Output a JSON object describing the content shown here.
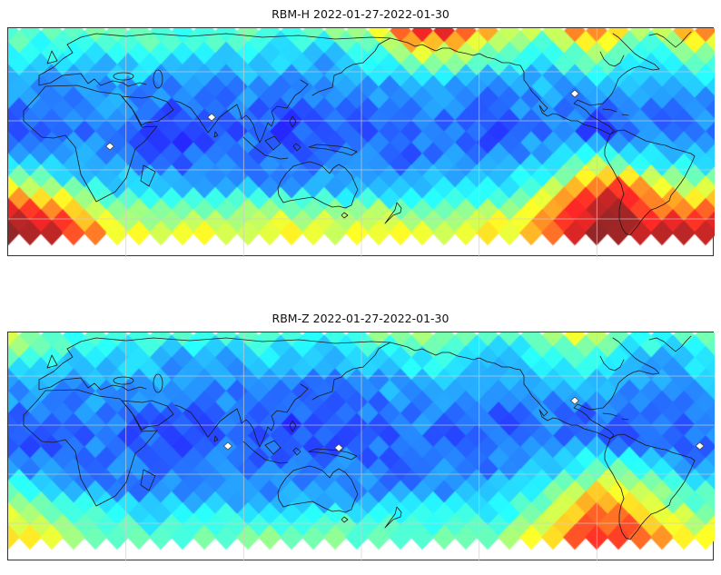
{
  "page": {
    "background": "#ffffff"
  },
  "style": {
    "coastline_color": "#1a1a1a",
    "grid_color": "#cfcfcf",
    "frame_color": "#333333",
    "marker_fill": "#ffffff",
    "marker_stroke": "#444444",
    "cell_alpha": 0.85
  },
  "chart_data": [
    {
      "type": "heatmap",
      "title": "RBM-H 2022-01-27-2022-01-30",
      "colormap": "jet",
      "legend": "world map heatmap of diamond-shaped cells; blue = low counts, red = high counts; high values over South Atlantic Anomaly (southern South America / South Atlantic, wrapping map edge) and northern high-latitude band",
      "grid_size": {
        "cols": 26,
        "rows": 9
      },
      "grid": [
        [
          0.48,
          0.45,
          0.42,
          0.45,
          0.48,
          0.45,
          0.42,
          0.45,
          0.48,
          0.45,
          0.42,
          0.45,
          0.5,
          0.62,
          0.85,
          0.95,
          0.9,
          0.78,
          0.58,
          0.52,
          0.8,
          0.85,
          0.6,
          0.52,
          0.8,
          0.85
        ],
        [
          0.4,
          0.38,
          0.35,
          0.33,
          0.35,
          0.38,
          0.35,
          0.33,
          0.35,
          0.33,
          0.3,
          0.33,
          0.35,
          0.42,
          0.52,
          0.56,
          0.52,
          0.46,
          0.4,
          0.38,
          0.46,
          0.5,
          0.42,
          0.38,
          0.45,
          0.48
        ],
        [
          0.3,
          0.28,
          0.25,
          0.28,
          0.3,
          0.28,
          0.25,
          0.22,
          0.25,
          0.28,
          0.25,
          0.22,
          0.25,
          0.28,
          0.3,
          0.33,
          0.3,
          0.28,
          0.3,
          0.28,
          0.3,
          0.33,
          0.3,
          0.28,
          0.3,
          0.32
        ],
        [
          0.22,
          0.2,
          0.22,
          0.25,
          0.22,
          0.2,
          0.18,
          0.2,
          0.22,
          0.2,
          0.18,
          0.2,
          0.22,
          0.2,
          0.22,
          0.25,
          0.22,
          0.2,
          0.22,
          0.25,
          0.22,
          0.2,
          0.22,
          0.25,
          0.22,
          0.25
        ],
        [
          0.2,
          0.18,
          0.2,
          0.22,
          0.2,
          0.18,
          0.16,
          0.18,
          0.2,
          0.18,
          0.16,
          0.18,
          0.2,
          0.18,
          0.2,
          0.22,
          0.2,
          0.18,
          0.2,
          0.22,
          0.2,
          0.18,
          0.2,
          0.22,
          0.2,
          0.22
        ],
        [
          0.35,
          0.3,
          0.28,
          0.25,
          0.25,
          0.22,
          0.2,
          0.22,
          0.25,
          0.22,
          0.2,
          0.22,
          0.25,
          0.22,
          0.2,
          0.22,
          0.25,
          0.25,
          0.28,
          0.32,
          0.42,
          0.48,
          0.4,
          0.32,
          0.3,
          0.32
        ],
        [
          0.62,
          0.55,
          0.45,
          0.38,
          0.32,
          0.3,
          0.3,
          0.28,
          0.3,
          0.28,
          0.3,
          0.28,
          0.3,
          0.28,
          0.3,
          0.33,
          0.32,
          0.35,
          0.38,
          0.48,
          0.7,
          0.85,
          0.8,
          0.6,
          0.55,
          0.58
        ],
        [
          0.95,
          0.9,
          0.8,
          0.65,
          0.55,
          0.5,
          0.52,
          0.55,
          0.52,
          0.55,
          0.52,
          0.55,
          0.52,
          0.56,
          0.52,
          0.5,
          0.52,
          0.55,
          0.58,
          0.72,
          0.88,
          0.97,
          0.96,
          0.88,
          0.82,
          0.88
        ],
        [
          1.0,
          0.98,
          0.92,
          0.8,
          0.68,
          0.65,
          0.66,
          0.68,
          0.65,
          0.66,
          0.68,
          0.65,
          0.66,
          0.7,
          0.65,
          0.6,
          0.62,
          0.65,
          0.7,
          0.82,
          0.96,
          1.0,
          1.0,
          0.98,
          0.95,
          1.0
        ]
      ],
      "markers": [
        {
          "x": 0.144,
          "y": 0.516
        },
        {
          "x": 0.288,
          "y": 0.389
        },
        {
          "x": 0.802,
          "y": 0.286
        }
      ]
    },
    {
      "type": "heatmap",
      "title": "RBM-Z 2022-01-27-2022-01-30",
      "colormap": "jet",
      "legend": "same map layout as RBM-H but overall lower intensities; moderate enhancement near southern South America and along top/bottom latitude bands",
      "grid_size": {
        "cols": 26,
        "rows": 9
      },
      "grid": [
        [
          0.62,
          0.5,
          0.45,
          0.42,
          0.45,
          0.42,
          0.4,
          0.42,
          0.45,
          0.42,
          0.4,
          0.42,
          0.45,
          0.48,
          0.52,
          0.55,
          0.5,
          0.46,
          0.42,
          0.55,
          0.62,
          0.58,
          0.46,
          0.42,
          0.45,
          0.48
        ],
        [
          0.42,
          0.38,
          0.35,
          0.32,
          0.3,
          0.32,
          0.3,
          0.28,
          0.3,
          0.32,
          0.3,
          0.28,
          0.3,
          0.32,
          0.36,
          0.38,
          0.35,
          0.32,
          0.3,
          0.36,
          0.42,
          0.38,
          0.32,
          0.3,
          0.32,
          0.35
        ],
        [
          0.28,
          0.26,
          0.24,
          0.26,
          0.28,
          0.26,
          0.24,
          0.22,
          0.24,
          0.26,
          0.24,
          0.22,
          0.24,
          0.26,
          0.28,
          0.3,
          0.28,
          0.26,
          0.28,
          0.26,
          0.28,
          0.3,
          0.28,
          0.26,
          0.28,
          0.3
        ],
        [
          0.22,
          0.2,
          0.22,
          0.24,
          0.22,
          0.2,
          0.18,
          0.2,
          0.22,
          0.2,
          0.18,
          0.2,
          0.22,
          0.2,
          0.22,
          0.24,
          0.22,
          0.2,
          0.22,
          0.24,
          0.22,
          0.2,
          0.22,
          0.24,
          0.22,
          0.24
        ],
        [
          0.2,
          0.18,
          0.2,
          0.22,
          0.2,
          0.18,
          0.16,
          0.18,
          0.2,
          0.18,
          0.16,
          0.18,
          0.2,
          0.18,
          0.2,
          0.22,
          0.2,
          0.18,
          0.2,
          0.22,
          0.2,
          0.18,
          0.2,
          0.22,
          0.2,
          0.22
        ],
        [
          0.26,
          0.24,
          0.22,
          0.22,
          0.24,
          0.22,
          0.2,
          0.22,
          0.24,
          0.22,
          0.2,
          0.22,
          0.24,
          0.22,
          0.2,
          0.22,
          0.24,
          0.22,
          0.24,
          0.28,
          0.35,
          0.45,
          0.38,
          0.3,
          0.26,
          0.24
        ],
        [
          0.45,
          0.38,
          0.32,
          0.28,
          0.26,
          0.24,
          0.26,
          0.24,
          0.26,
          0.24,
          0.26,
          0.24,
          0.26,
          0.24,
          0.26,
          0.28,
          0.26,
          0.28,
          0.32,
          0.42,
          0.58,
          0.68,
          0.62,
          0.48,
          0.42,
          0.4
        ],
        [
          0.62,
          0.56,
          0.5,
          0.42,
          0.38,
          0.36,
          0.38,
          0.4,
          0.38,
          0.4,
          0.38,
          0.4,
          0.38,
          0.4,
          0.38,
          0.4,
          0.38,
          0.42,
          0.46,
          0.56,
          0.72,
          0.82,
          0.78,
          0.66,
          0.56,
          0.52
        ],
        [
          0.72,
          0.68,
          0.62,
          0.55,
          0.5,
          0.48,
          0.5,
          0.52,
          0.5,
          0.52,
          0.5,
          0.48,
          0.5,
          0.52,
          0.5,
          0.46,
          0.5,
          0.52,
          0.56,
          0.66,
          0.8,
          0.86,
          0.84,
          0.76,
          0.7,
          0.72
        ]
      ],
      "markers": [
        {
          "x": 0.311,
          "y": 0.496
        },
        {
          "x": 0.468,
          "y": 0.504
        },
        {
          "x": 0.802,
          "y": 0.298
        },
        {
          "x": 0.979,
          "y": 0.496
        }
      ]
    }
  ]
}
